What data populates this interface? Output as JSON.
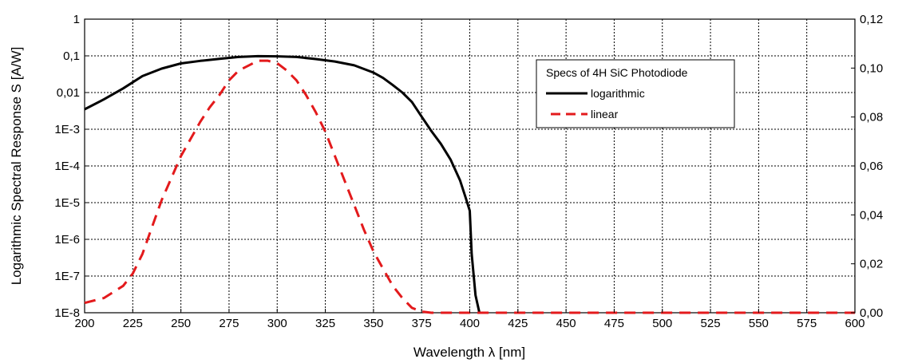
{
  "chart_data": {
    "type": "line",
    "title": "",
    "xlabel": "Wavelength λ [nm]",
    "ylabel": "Logarithmic Spectral Response S [A/W]",
    "y2label": "",
    "xlim": [
      200,
      600
    ],
    "ylim": [
      1e-08,
      1
    ],
    "yscale": "log",
    "y2lim": [
      0,
      0.12
    ],
    "grid": true,
    "x_ticks": [
      "200",
      "225",
      "250",
      "275",
      "300",
      "325",
      "350",
      "375",
      "400",
      "425",
      "450",
      "475",
      "500",
      "525",
      "550",
      "575",
      "600"
    ],
    "y_ticks": [
      "1",
      "0,1",
      "0,01",
      "1E-3",
      "1E-4",
      "1E-5",
      "1E-6",
      "1E-7",
      "1E-8"
    ],
    "y2_ticks": [
      "0,12",
      "0,10",
      "0,08",
      "0,06",
      "0,04",
      "0,02",
      "0,00"
    ],
    "legend": {
      "title": "Specs of 4H SiC Photodiode",
      "position": "right",
      "entries": [
        "logarithmic",
        "linear"
      ]
    },
    "series": [
      {
        "name": "logarithmic",
        "axis": "left",
        "color": "#000000",
        "dash": "solid",
        "x": [
          200,
          210,
          220,
          230,
          240,
          250,
          260,
          270,
          280,
          290,
          300,
          310,
          320,
          330,
          340,
          350,
          355,
          360,
          365,
          370,
          375,
          380,
          385,
          390,
          395,
          398,
          400,
          401,
          403,
          405
        ],
        "y": [
          0.0035,
          0.0065,
          0.013,
          0.028,
          0.045,
          0.062,
          0.073,
          0.083,
          0.093,
          0.098,
          0.097,
          0.093,
          0.082,
          0.07,
          0.055,
          0.035,
          0.025,
          0.016,
          0.01,
          0.0055,
          0.0022,
          0.0009,
          0.0004,
          0.00015,
          4e-05,
          1.3e-05,
          6e-06,
          4e-07,
          3e-08,
          1e-08
        ]
      },
      {
        "name": "linear",
        "axis": "right",
        "color": "#e31a1c",
        "dash": "dashed",
        "x": [
          200,
          210,
          220,
          225,
          230,
          235,
          240,
          245,
          250,
          255,
          260,
          265,
          270,
          275,
          280,
          285,
          290,
          295,
          300,
          305,
          310,
          315,
          320,
          325,
          330,
          335,
          340,
          345,
          350,
          355,
          360,
          365,
          370,
          375,
          380,
          385,
          390,
          400,
          410,
          420,
          450,
          500,
          550,
          600
        ],
        "y": [
          0.004,
          0.006,
          0.011,
          0.016,
          0.024,
          0.035,
          0.046,
          0.055,
          0.064,
          0.071,
          0.078,
          0.084,
          0.089,
          0.095,
          0.099,
          0.101,
          0.103,
          0.103,
          0.102,
          0.099,
          0.095,
          0.089,
          0.082,
          0.074,
          0.064,
          0.054,
          0.044,
          0.034,
          0.025,
          0.018,
          0.011,
          0.006,
          0.002,
          0.0005,
          0.0,
          0.0,
          0.0,
          0.0,
          0.0,
          0.0,
          0.0,
          0.0,
          0.0,
          0.0
        ]
      }
    ]
  }
}
